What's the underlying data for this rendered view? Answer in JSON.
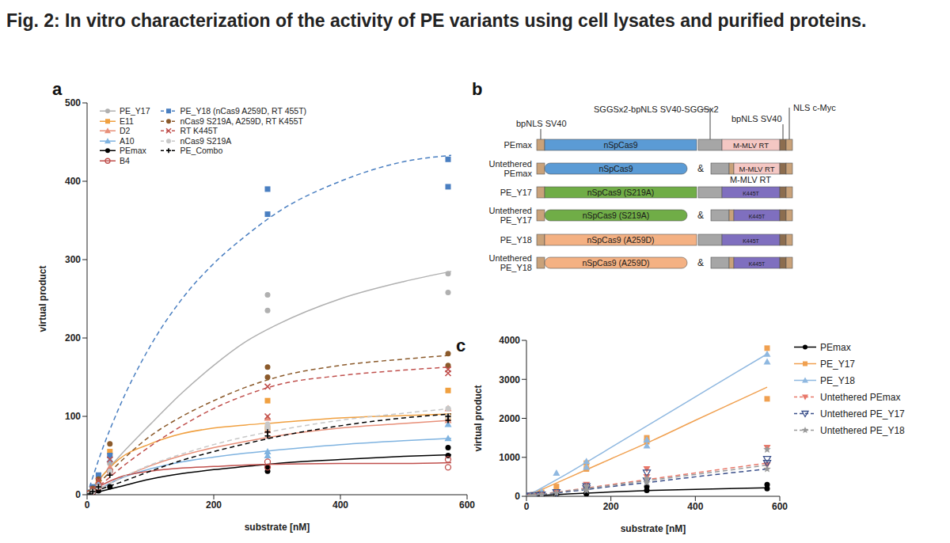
{
  "title": "Fig. 2: In vitro characterization of the activity of PE variants using cell lysates and purified proteins.",
  "chart_data": [
    {
      "type": "scatter",
      "title": "a",
      "x_label": "substrate [nM]",
      "y_label": "virtual product",
      "xlim": [
        0,
        600
      ],
      "xticks": [
        0,
        200,
        400,
        600
      ],
      "ylim": [
        0,
        500
      ],
      "yticks": [
        0,
        100,
        200,
        300,
        400,
        500
      ],
      "x": [
        4.5,
        9,
        18,
        36,
        285,
        285,
        570,
        570
      ],
      "fit_x": [
        0,
        25,
        50,
        100,
        150,
        200,
        250,
        300,
        400,
        500,
        575
      ],
      "series": [
        {
          "name": "PE_Y17",
          "color": "#b0b0b0",
          "marker": "circle",
          "line_style": "solid",
          "values": [
            2,
            6,
            15,
            40,
            255,
            235,
            282,
            258
          ],
          "fit": [
            0,
            25,
            48,
            90,
            130,
            165,
            195,
            217,
            250,
            272,
            285
          ]
        },
        {
          "name": "E11",
          "color": "#f0a040",
          "marker": "square",
          "line_style": "solid",
          "values": [
            2,
            8,
            18,
            55,
            120,
            85,
            133,
            100
          ],
          "fit": [
            0,
            25,
            45,
            65,
            78,
            85,
            89,
            92,
            98,
            101,
            103
          ]
        },
        {
          "name": "D2",
          "color": "#e8907a",
          "marker": "triangle",
          "line_style": "solid",
          "values": [
            1,
            5,
            12,
            35,
            98,
            82,
            110,
            95
          ],
          "fit": [
            0,
            10,
            20,
            37,
            50,
            60,
            68,
            75,
            85,
            91,
            95
          ]
        },
        {
          "name": "A10",
          "color": "#7fb3e0",
          "marker": "triangle",
          "line_style": "solid",
          "values": [
            1,
            5,
            14,
            45,
            55,
            50,
            90,
            72
          ],
          "fit": [
            0,
            10,
            20,
            33,
            42,
            48,
            53,
            57,
            64,
            69,
            72
          ]
        },
        {
          "name": "PEmax",
          "color": "#000000",
          "marker": "circle",
          "line_style": "solid",
          "values": [
            0,
            2,
            5,
            10,
            35,
            30,
            60,
            50
          ],
          "fit": [
            0,
            5,
            10,
            20,
            27,
            32,
            36,
            40,
            45,
            49,
            51
          ]
        },
        {
          "name": "B4",
          "color": "#c0504d",
          "marker": "open-circle",
          "line_style": "solid",
          "values": [
            1,
            4,
            10,
            30,
            42,
            35,
            45,
            35
          ],
          "fit": [
            0,
            13,
            22,
            30,
            34,
            36,
            38,
            39,
            40,
            40,
            41
          ]
        },
        {
          "name": "PE_Y18 (nCas9 A259D, RT 455T)",
          "color": "#4a7fc1",
          "marker": "square",
          "line_style": "dashed",
          "values": [
            3,
            10,
            25,
            50,
            390,
            358,
            428,
            393
          ],
          "fit": [
            0,
            60,
            110,
            190,
            250,
            295,
            330,
            360,
            400,
            425,
            433
          ]
        },
        {
          "name": "nCas9 S219A, A259D, RT K455T",
          "color": "#8b5a2b",
          "marker": "circle",
          "line_style": "dashed",
          "values": [
            3,
            8,
            20,
            65,
            163,
            150,
            180,
            165
          ],
          "fit": [
            0,
            20,
            40,
            75,
            100,
            120,
            137,
            150,
            165,
            173,
            178
          ]
        },
        {
          "name": "RT K445T",
          "color": "#c0504d",
          "marker": "x",
          "line_style": "dashed",
          "values": [
            2,
            7,
            18,
            45,
            138,
            100,
            160,
            155
          ],
          "fit": [
            0,
            15,
            32,
            62,
            88,
            110,
            127,
            140,
            152,
            159,
            163
          ]
        },
        {
          "name": "nCas9 S219A",
          "color": "#c8c8c8",
          "marker": "circle",
          "line_style": "dashed",
          "values": [
            1,
            4,
            10,
            30,
            90,
            85,
            110,
            100
          ],
          "fit": [
            0,
            10,
            20,
            38,
            52,
            64,
            74,
            82,
            95,
            104,
            110
          ]
        },
        {
          "name": "PE_Combo",
          "color": "#000000",
          "marker": "plus",
          "line_style": "dashed",
          "values": [
            1,
            4,
            10,
            25,
            80,
            75,
            100,
            95
          ],
          "fit": [
            0,
            8,
            15,
            30,
            44,
            55,
            65,
            74,
            88,
            98,
            103
          ]
        }
      ]
    },
    {
      "type": "scatter",
      "title": "c",
      "x_label": "substrate [nM]",
      "y_label": "virtual product",
      "xlim": [
        0,
        600
      ],
      "xticks": [
        0,
        200,
        400,
        600
      ],
      "ylim": [
        0,
        4000
      ],
      "yticks": [
        0,
        1000,
        2000,
        3000,
        4000
      ],
      "x": [
        9,
        18,
        36,
        71,
        142,
        142,
        285,
        285,
        570,
        570
      ],
      "fit_x": [
        0,
        100,
        200,
        300,
        400,
        500,
        570
      ],
      "series": [
        {
          "name": "PEmax",
          "color": "#000000",
          "marker": "circle",
          "line_style": "solid",
          "values": [
            5,
            10,
            20,
            40,
            80,
            60,
            150,
            250,
            300,
            200
          ],
          "fit": [
            0,
            60,
            110,
            150,
            180,
            205,
            220
          ]
        },
        {
          "name": "PE_Y17",
          "color": "#f0a050",
          "marker": "square",
          "line_style": "solid",
          "values": [
            20,
            40,
            100,
            250,
            700,
            850,
            1500,
            1400,
            3800,
            2500
          ],
          "fit": [
            0,
            480,
            960,
            1440,
            1950,
            2450,
            2800
          ]
        },
        {
          "name": "PE_Y18",
          "color": "#8fb8e0",
          "marker": "triangle",
          "line_style": "solid",
          "values": [
            25,
            50,
            120,
            600,
            900,
            750,
            1450,
            1300,
            3650,
            3450
          ],
          "fit": [
            0,
            600,
            1250,
            1900,
            2550,
            3200,
            3650
          ]
        },
        {
          "name": "Untethered PEmax",
          "color": "#e8786a",
          "marker": "triangle-down",
          "line_style": "dashed",
          "values": [
            10,
            20,
            50,
            100,
            300,
            200,
            500,
            700,
            1250,
            800
          ],
          "fit": [
            0,
            150,
            300,
            450,
            600,
            750,
            850
          ]
        },
        {
          "name": "Untethered PE_Y17",
          "color": "#3a4f8a",
          "marker": "open-triangle-down",
          "line_style": "dashed",
          "values": [
            10,
            20,
            40,
            100,
            250,
            200,
            400,
            600,
            950,
            850
          ],
          "fit": [
            0,
            120,
            250,
            370,
            500,
            620,
            700
          ]
        },
        {
          "name": "Untethered PE_Y18",
          "color": "#999999",
          "marker": "star",
          "line_style": "dashed",
          "values": [
            10,
            20,
            40,
            80,
            250,
            150,
            350,
            450,
            1200,
            700
          ],
          "fit": [
            0,
            140,
            280,
            420,
            560,
            700,
            800
          ]
        }
      ]
    }
  ],
  "diagram": {
    "title": "b",
    "separator": "&",
    "annotations": [
      "bpNLS SV40",
      "SGGSx2-bpNLS SV40-SGGSx2",
      "bpNLS SV40",
      "NLS c-Myc",
      "M-MLV RT"
    ],
    "rows": [
      {
        "label": "PEmax",
        "cas9": "nSpCas9",
        "cas9_color": "#5b9bd5",
        "rt": "M-MLV RT",
        "rt_color": "#f4c7c3",
        "tethered": true
      },
      {
        "label": "Untethered PEmax",
        "cas9": "nSpCas9",
        "cas9_color": "#5b9bd5",
        "rt": "M-MLV RT",
        "rt_color": "#f4c7c3",
        "tethered": false
      },
      {
        "label": "PE_Y17",
        "cas9": "nSpCas9 (S219A)",
        "cas9_color": "#70ad47",
        "rt": "K445T",
        "rt_color": "#7f6fbf",
        "tethered": true
      },
      {
        "label": "Untethered PE_Y17",
        "cas9": "nSpCas9 (S219A)",
        "cas9_color": "#70ad47",
        "rt": "K445T",
        "rt_color": "#7f6fbf",
        "tethered": false
      },
      {
        "label": "PE_Y18",
        "cas9": "nSpCas9 (A259D)",
        "cas9_color": "#f4b183",
        "rt": "K445T",
        "rt_color": "#7f6fbf",
        "tethered": true
      },
      {
        "label": "Untethered PE_Y18",
        "cas9": "nSpCas9 (A259D)",
        "cas9_color": "#f4b183",
        "rt": "K445T",
        "rt_color": "#7f6fbf",
        "tethered": false
      }
    ]
  }
}
